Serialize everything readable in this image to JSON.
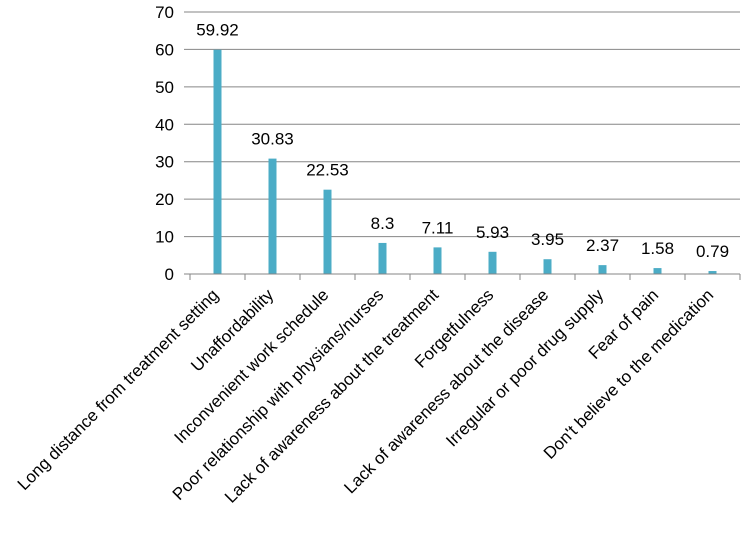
{
  "chart_data": {
    "type": "bar",
    "categories": [
      "Long distance from treatment setting",
      "Unaffordability",
      "Inconvenient work schedule",
      "Poor relationship with physians/nurses",
      "Lack of awareness about the treatment",
      "Forgetfulness",
      "Lack of awareness about the disease",
      "Irregular or poor drug supply",
      "Fear of pain",
      "Don't believe to the medication"
    ],
    "values": [
      59.92,
      30.83,
      22.53,
      8.3,
      7.11,
      5.93,
      3.95,
      2.37,
      1.58,
      0.79
    ],
    "data_labels": [
      "59.92",
      "30.83",
      "22.53",
      "8.3",
      "7.11",
      "5.93",
      "3.95",
      "2.37",
      "1.58",
      "0.79"
    ],
    "yticks": [
      0,
      10,
      20,
      30,
      40,
      50,
      60,
      70
    ],
    "ylim": [
      0,
      70
    ],
    "title": "",
    "xlabel": "",
    "ylabel": "",
    "grid": true,
    "legend": "none",
    "colors": {
      "bar": "#4bacc6",
      "grid": "#868686",
      "axis": "#868686"
    }
  }
}
